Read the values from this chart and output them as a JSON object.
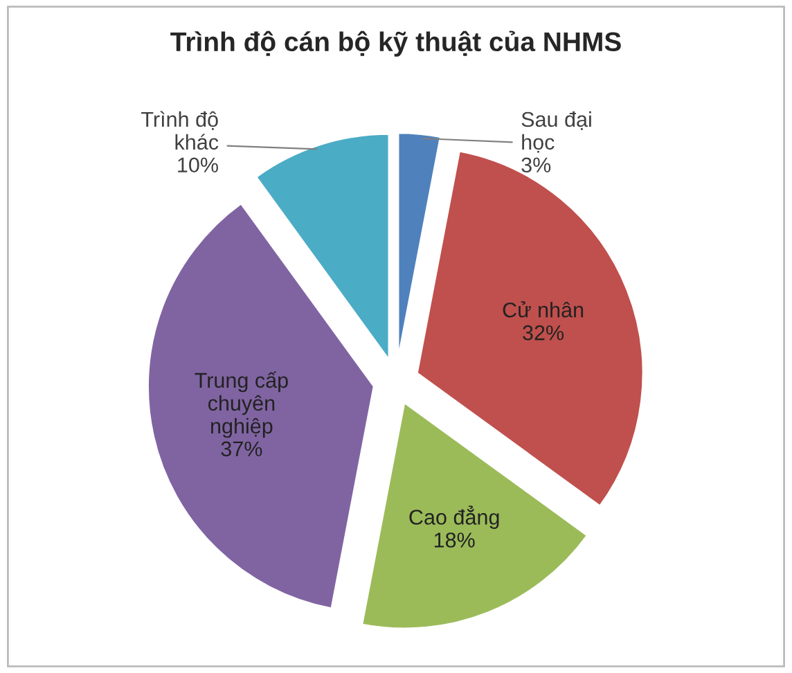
{
  "chart_data": {
    "type": "pie",
    "title": "Trình độ cán bộ kỹ thuật của NHMS",
    "categories": [
      "Sau đại\nhọc",
      "Cử nhân",
      "Cao đẳng",
      "Trung cấp\nchuyên\nnghiệp",
      "Trình độ\nkhác"
    ],
    "values": [
      3,
      32,
      18,
      37,
      10
    ],
    "value_labels": [
      "3%",
      "32%",
      "18%",
      "37%",
      "10%"
    ],
    "colors": [
      "#4f81bd",
      "#c0504d",
      "#9bbb59",
      "#8064a2",
      "#4bacc6"
    ]
  }
}
